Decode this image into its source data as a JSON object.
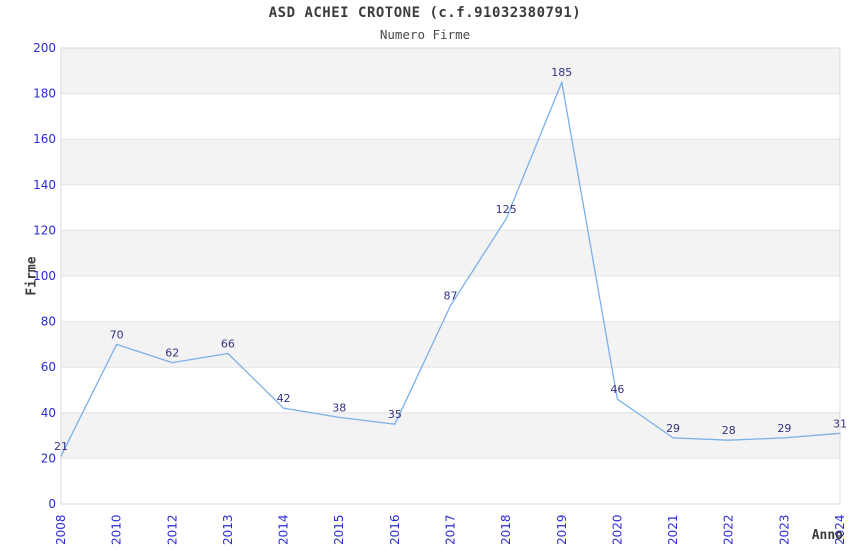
{
  "header": {
    "title": "ASD ACHEI CROTONE (c.f.91032380791)",
    "subtitle": "Numero Firme"
  },
  "chart_data": {
    "type": "line",
    "title": "ASD ACHEI CROTONE (c.f.91032380791)",
    "subtitle": "Numero Firme",
    "xlabel": "Anno",
    "ylabel": "Firme",
    "categories": [
      "2008",
      "2010",
      "2012",
      "2013",
      "2014",
      "2015",
      "2016",
      "2017",
      "2018",
      "2019",
      "2020",
      "2021",
      "2022",
      "2023",
      "2024"
    ],
    "values": [
      21,
      70,
      62,
      66,
      42,
      38,
      35,
      87,
      125,
      185,
      46,
      29,
      28,
      29,
      31
    ],
    "data_labels": [
      "21",
      "70",
      "62",
      "66",
      "42",
      "38",
      "35",
      "87",
      "125",
      "185",
      "46",
      "29",
      "28",
      "29",
      "31"
    ],
    "ylim": [
      0,
      200
    ],
    "yticks": [
      0,
      20,
      40,
      60,
      80,
      100,
      120,
      140,
      160,
      180,
      200
    ],
    "grid": "horizontal-alternating-bands",
    "legend": "none",
    "colors": {
      "line": "#7CB0E8",
      "tick_labels": "#2B2BD5",
      "data_labels": "#333380",
      "band_fill": "#F3F3F3",
      "gridline": "#E4E4E4",
      "plot_border": "#D8D8D8",
      "title_text": "#3C3C3C",
      "background": "#FFFFFF"
    }
  }
}
